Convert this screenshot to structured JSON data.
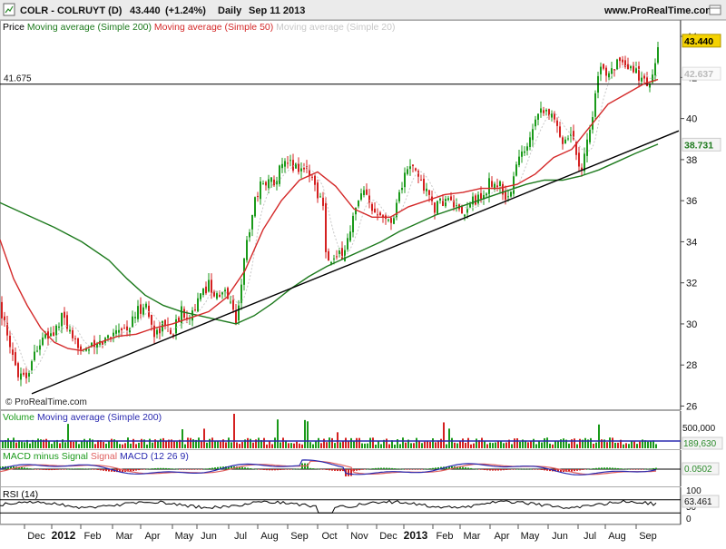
{
  "header": {
    "title": "COLR - COLRUYT (D)",
    "price": "43.440",
    "change": "(+1.24%)",
    "period": "Daily",
    "date": "Sep 11 2013",
    "site": "www.ProRealTime.com"
  },
  "copyright": "© ProRealTime.com",
  "colors": {
    "up": "#1a9a1a",
    "down": "#d42020",
    "ma200": "#1d7a1d",
    "ma50": "#d42a2a",
    "ma20": "#c8c8c8",
    "trend": "#000000",
    "volume_ma": "#2a2ab0",
    "macd": "#2a2ab0",
    "signal": "#e06060",
    "price_badge": "#f4d200"
  },
  "legends": {
    "price": [
      {
        "text": "Price",
        "color": "#000000"
      },
      {
        "text": "Moving average (Simple 200)",
        "color": "#1d7a1d"
      },
      {
        "text": "Moving average (Simple 50)",
        "color": "#d42a2a"
      },
      {
        "text": "Moving average (Simple 20)",
        "color": "#c8c8c8"
      }
    ],
    "volume": [
      {
        "text": "Volume",
        "color": "#1a9a1a"
      },
      {
        "text": "Moving average (Simple 200)",
        "color": "#2a2ab0"
      }
    ],
    "macd": [
      {
        "text": "MACD minus Signal",
        "color": "#1a9a1a"
      },
      {
        "text": "Signal",
        "color": "#e06060"
      },
      {
        "text": "MACD (12 26 9)",
        "color": "#2a2ab0"
      }
    ],
    "rsi": [
      {
        "text": "RSI (14)",
        "color": "#000000"
      }
    ]
  },
  "chart_data": {
    "type": "line",
    "x_axis_labels": [
      "Dec",
      "2012",
      "Feb",
      "Mar",
      "Apr",
      "May",
      "Jun",
      "Jul",
      "Aug",
      "Sep",
      "Oct",
      "Nov",
      "Dec",
      "2013",
      "Feb",
      "Mar",
      "Apr",
      "May",
      "Jun",
      "Jul",
      "Aug",
      "Sep"
    ],
    "price_panel": {
      "ylim": [
        25.8,
        44.8
      ],
      "yticks": [
        "44",
        "42",
        "40",
        "38",
        "36",
        "34",
        "32",
        "30",
        "28",
        "26"
      ],
      "last_price": "43.440",
      "ma20_value": "42.637",
      "ma200_value": "38.731",
      "horizontal_level": "41.675",
      "close_series": [
        [
          0,
          31.0
        ],
        [
          10,
          28.8
        ],
        [
          20,
          27.7
        ],
        [
          30,
          27.5
        ],
        [
          40,
          28.9
        ],
        [
          50,
          29.3
        ],
        [
          60,
          29.6
        ],
        [
          70,
          30.4
        ],
        [
          80,
          29.0
        ],
        [
          90,
          29.0
        ],
        [
          100,
          28.8
        ],
        [
          110,
          29.0
        ],
        [
          120,
          29.4
        ],
        [
          130,
          29.9
        ],
        [
          140,
          29.7
        ],
        [
          150,
          30.5
        ],
        [
          160,
          31.0
        ],
        [
          170,
          29.5
        ],
        [
          180,
          30.0
        ],
        [
          190,
          29.6
        ],
        [
          200,
          30.6
        ],
        [
          210,
          30.5
        ],
        [
          220,
          31.2
        ],
        [
          230,
          32.0
        ],
        [
          240,
          31.2
        ],
        [
          250,
          31.6
        ],
        [
          260,
          30.1
        ],
        [
          270,
          33.4
        ],
        [
          280,
          36.0
        ],
        [
          290,
          37.0
        ],
        [
          300,
          36.9
        ],
        [
          310,
          37.6
        ],
        [
          320,
          37.8
        ],
        [
          330,
          37.6
        ],
        [
          340,
          37.5
        ],
        [
          350,
          36.4
        ],
        [
          356,
          36.0
        ],
        [
          360,
          33.0
        ],
        [
          370,
          33.1
        ],
        [
          380,
          33.6
        ],
        [
          390,
          35.3
        ],
        [
          400,
          36.4
        ],
        [
          410,
          35.5
        ],
        [
          420,
          35.6
        ],
        [
          430,
          34.8
        ],
        [
          440,
          36.4
        ],
        [
          450,
          37.7
        ],
        [
          460,
          37.3
        ],
        [
          470,
          36.4
        ],
        [
          480,
          35.6
        ],
        [
          490,
          36.1
        ],
        [
          500,
          35.8
        ],
        [
          510,
          35.0
        ],
        [
          520,
          36.1
        ],
        [
          530,
          36.0
        ],
        [
          540,
          36.9
        ],
        [
          550,
          36.8
        ],
        [
          560,
          36.0
        ],
        [
          570,
          37.9
        ],
        [
          580,
          38.6
        ],
        [
          590,
          40.2
        ],
        [
          600,
          40.6
        ],
        [
          610,
          39.9
        ],
        [
          620,
          39.0
        ],
        [
          630,
          39.3
        ],
        [
          640,
          37.5
        ],
        [
          650,
          39.5
        ],
        [
          660,
          42.2
        ],
        [
          670,
          42.4
        ],
        [
          680,
          42.7
        ],
        [
          690,
          42.3
        ],
        [
          700,
          42.4
        ],
        [
          710,
          41.7
        ],
        [
          720,
          42.0
        ],
        [
          725,
          43.44
        ]
      ],
      "ma50_series": [
        [
          0,
          34.1
        ],
        [
          15,
          32.2
        ],
        [
          30,
          30.9
        ],
        [
          45,
          29.8
        ],
        [
          60,
          29.1
        ],
        [
          75,
          28.8
        ],
        [
          90,
          28.7
        ],
        [
          110,
          29.1
        ],
        [
          130,
          29.4
        ],
        [
          150,
          29.5
        ],
        [
          170,
          29.8
        ],
        [
          190,
          30.0
        ],
        [
          210,
          30.3
        ],
        [
          230,
          30.6
        ],
        [
          250,
          31.3
        ],
        [
          270,
          32.6
        ],
        [
          290,
          34.6
        ],
        [
          310,
          36.0
        ],
        [
          330,
          37.0
        ],
        [
          350,
          37.4
        ],
        [
          370,
          36.7
        ],
        [
          390,
          35.6
        ],
        [
          410,
          35.2
        ],
        [
          430,
          35.2
        ],
        [
          450,
          35.7
        ],
        [
          470,
          36.0
        ],
        [
          490,
          36.3
        ],
        [
          510,
          36.4
        ],
        [
          530,
          36.6
        ],
        [
          550,
          36.6
        ],
        [
          570,
          36.8
        ],
        [
          590,
          37.3
        ],
        [
          610,
          38.1
        ],
        [
          630,
          38.5
        ],
        [
          650,
          39.6
        ],
        [
          670,
          40.7
        ],
        [
          690,
          41.2
        ],
        [
          710,
          41.7
        ],
        [
          725,
          41.9
        ]
      ],
      "ma200_series": [
        [
          0,
          35.9
        ],
        [
          30,
          35.3
        ],
        [
          60,
          34.7
        ],
        [
          90,
          34.0
        ],
        [
          120,
          33.1
        ],
        [
          140,
          32.2
        ],
        [
          160,
          31.4
        ],
        [
          180,
          30.9
        ],
        [
          200,
          30.6
        ],
        [
          220,
          30.4
        ],
        [
          240,
          30.2
        ],
        [
          260,
          30.0
        ],
        [
          280,
          30.4
        ],
        [
          300,
          31.0
        ],
        [
          320,
          31.7
        ],
        [
          340,
          32.3
        ],
        [
          360,
          32.8
        ],
        [
          380,
          33.2
        ],
        [
          400,
          33.6
        ],
        [
          420,
          34.0
        ],
        [
          440,
          34.5
        ],
        [
          460,
          34.9
        ],
        [
          480,
          35.3
        ],
        [
          500,
          35.6
        ],
        [
          520,
          35.9
        ],
        [
          540,
          36.2
        ],
        [
          560,
          36.5
        ],
        [
          580,
          36.8
        ],
        [
          600,
          37.0
        ],
        [
          620,
          37.0
        ],
        [
          640,
          37.2
        ],
        [
          660,
          37.5
        ],
        [
          680,
          37.9
        ],
        [
          700,
          38.3
        ],
        [
          725,
          38.75
        ]
      ],
      "trendline": [
        [
          35,
          26.6
        ],
        [
          748,
          39.4
        ]
      ]
    },
    "volume_panel": {
      "yticks": [
        "500,000"
      ],
      "ma_value": "189,630"
    },
    "macd_panel": {
      "yticks": [
        "0"
      ],
      "macd_value": "0.0502"
    },
    "rsi_panel": {
      "yticks": [
        "100",
        "50",
        "0"
      ],
      "rsi_value": "63.461"
    }
  }
}
